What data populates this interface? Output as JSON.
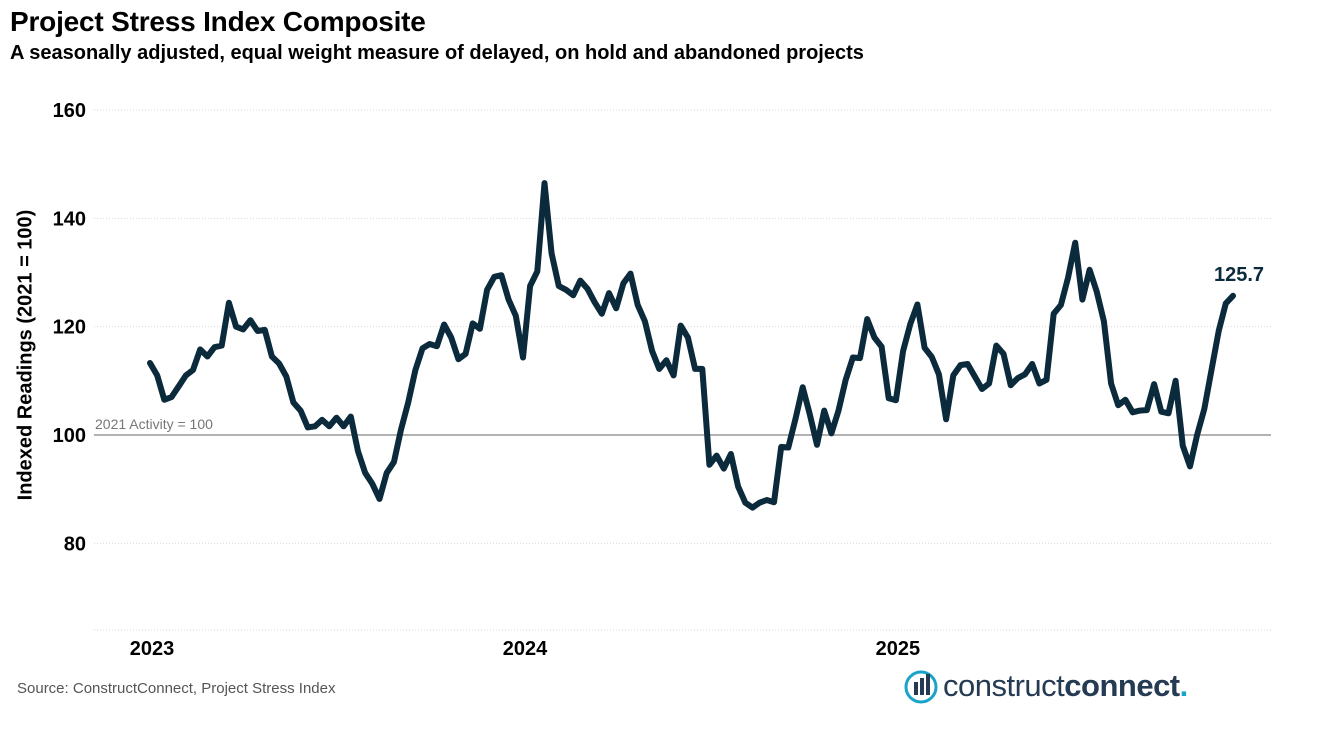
{
  "chart_data": {
    "type": "line",
    "title": "Project Stress Index Composite",
    "subtitle": "A seasonally adjusted, equal weight measure of delayed, on hold and abandoned projects",
    "ylabel": "Indexed Readings (2021 = 100)",
    "xlabel": "",
    "ylim": [
      64,
      160
    ],
    "yticks": [
      80,
      100,
      120,
      140,
      160
    ],
    "xticks": [
      {
        "label": "2023",
        "index": 0
      },
      {
        "label": "2024",
        "index": 52
      },
      {
        "label": "2025",
        "index": 104
      }
    ],
    "reference_line": {
      "value": 100,
      "label": "2021 Activity = 100"
    },
    "end_label": "125.7",
    "series": [
      {
        "name": "Project Stress Index",
        "color": "#0b2a3c",
        "values": [
          113.3,
          111.0,
          106.5,
          107.0,
          109.0,
          111.0,
          112.0,
          115.8,
          114.5,
          116.2,
          116.5,
          124.4,
          120.0,
          119.5,
          121.2,
          119.2,
          119.4,
          114.5,
          113.2,
          110.8,
          106.0,
          104.5,
          101.4,
          101.6,
          102.8,
          101.6,
          103.2,
          101.6,
          103.4,
          97.0,
          93.0,
          91.0,
          88.2,
          93.0,
          95.0,
          101.0,
          106.0,
          112.0,
          116.0,
          116.8,
          116.4,
          120.4,
          118.0,
          114.0,
          115.0,
          120.6,
          119.6,
          126.8,
          129.2,
          129.5,
          125.0,
          122.0,
          114.3,
          127.5,
          130.2,
          146.5,
          133.5,
          127.5,
          126.8,
          125.8,
          128.5,
          127.0,
          124.5,
          122.4,
          126.2,
          123.4,
          128.0,
          129.8,
          124.0,
          121.0,
          115.5,
          112.2,
          113.8,
          111.0,
          120.2,
          118.0,
          112.2,
          112.2,
          94.5,
          96.2,
          93.8,
          96.5,
          90.5,
          87.5,
          86.6,
          87.5,
          88.0,
          87.6,
          97.8,
          97.7,
          103.0,
          108.8,
          103.8,
          98.2,
          104.5,
          100.3,
          104.5,
          110.2,
          114.3,
          114.2,
          121.4,
          118.0,
          116.3,
          106.8,
          106.4,
          115.5,
          120.5,
          124.1,
          116.1,
          114.4,
          111.2,
          102.9,
          111.0,
          112.9,
          113.1,
          110.8,
          108.5,
          109.5,
          116.5,
          115.0,
          109.2,
          110.5,
          111.2,
          113.1,
          109.5,
          110.2,
          122.4,
          124.0,
          129.0,
          135.5,
          125.0,
          130.5,
          126.5,
          121.0,
          109.5,
          105.5,
          106.5,
          104.2,
          104.5,
          104.6,
          109.4,
          104.3,
          104.0,
          110.0,
          98.0,
          94.2,
          100.0,
          104.8,
          112.0,
          119.2,
          124.3,
          125.7
        ]
      }
    ]
  },
  "source": "Source: ConstructConnect, Project Stress Index",
  "logo": {
    "text_light": "construct",
    "text_bold": "connect",
    "dot": "."
  }
}
